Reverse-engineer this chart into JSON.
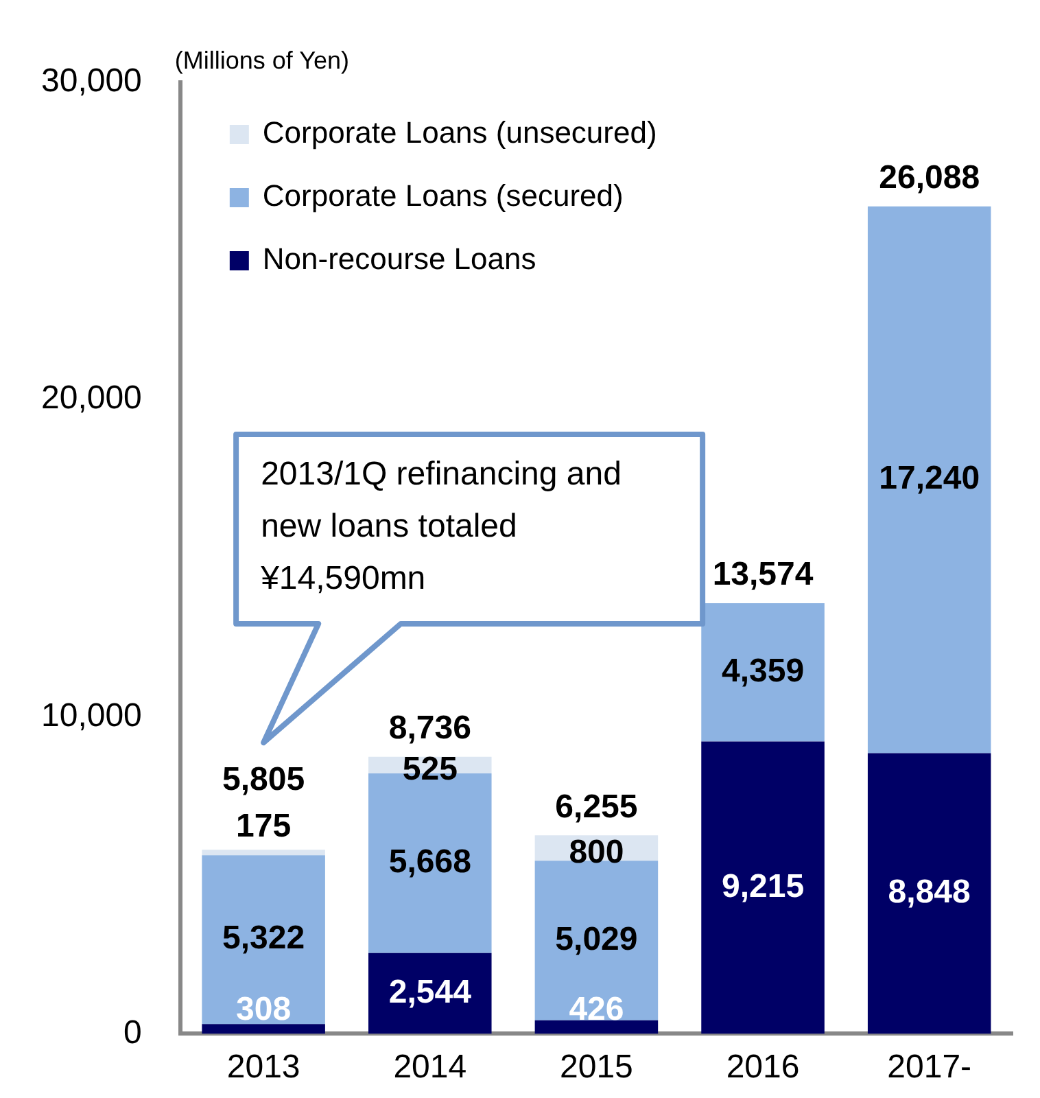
{
  "chart_data": {
    "type": "bar",
    "stacked": true,
    "ylabel": "(Millions of Yen)",
    "categories": [
      "2013",
      "2014",
      "2015",
      "2016",
      "2017-"
    ],
    "series": [
      {
        "name": "Non-recourse Loans",
        "color": "#000066",
        "values": [
          308,
          2544,
          426,
          9215,
          8848
        ],
        "value_labels": [
          "308",
          "2,544",
          "426",
          "9,215",
          "8,848"
        ]
      },
      {
        "name": "Corporate Loans (secured)",
        "color": "#8db3e2",
        "values": [
          5322,
          5668,
          5029,
          4359,
          17240
        ],
        "value_labels": [
          "5,322",
          "5,668",
          "5,029",
          "4,359",
          "17,240"
        ]
      },
      {
        "name": "Corporate Loans (unsecured)",
        "color": "#dce6f2",
        "values": [
          175,
          525,
          800,
          null,
          null
        ],
        "value_labels": [
          "175",
          "525",
          "800",
          null,
          null
        ]
      }
    ],
    "totals": [
      "5,805",
      "8,736",
      "6,255",
      "13,574",
      "26,088"
    ],
    "ylim": [
      0,
      30000
    ],
    "yticks": [
      0,
      {
        "value": 10000,
        "label": "10,000"
      },
      {
        "value": 20000,
        "label": "20,000"
      },
      {
        "value": 30000,
        "label": "30,000"
      }
    ],
    "grid": false,
    "legend": "top left",
    "annotations": [
      "2013/1Q refinancing and new loans totaled ¥14,590mn"
    ]
  }
}
